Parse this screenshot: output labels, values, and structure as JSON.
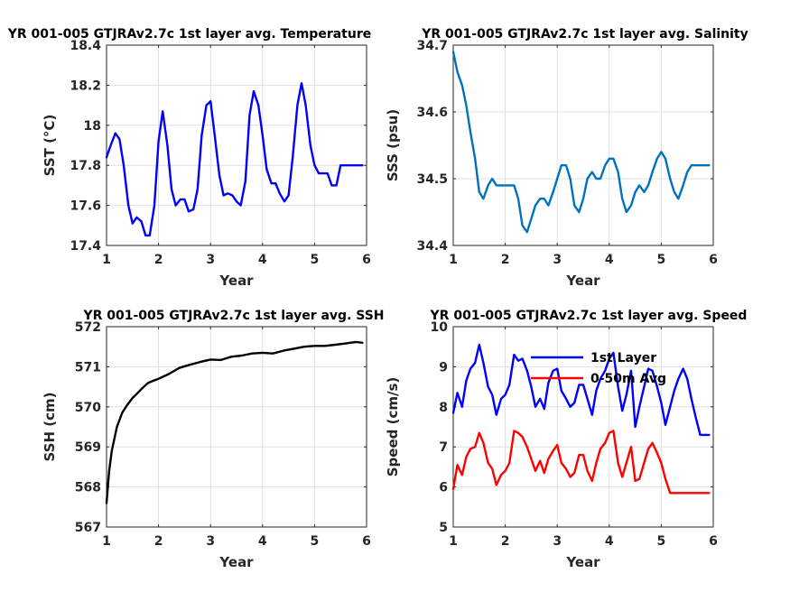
{
  "chart_data": [
    {
      "type": "line",
      "title": "YR 001-005 GTJRAv2.7c 1st layer avg. Temperature",
      "xlabel": "Year",
      "ylabel": "SST (°C)",
      "xlim": [
        1,
        6
      ],
      "ylim": [
        17.4,
        18.4
      ],
      "xticks": [
        "1",
        "2",
        "3",
        "4",
        "5",
        "6"
      ],
      "yticks": [
        "17.4",
        "17.6",
        "17.8",
        "18",
        "18.2",
        "18.4"
      ],
      "grid": true,
      "series": [
        {
          "color": "#0000ff",
          "x": [
            1.0,
            1.08,
            1.17,
            1.25,
            1.33,
            1.42,
            1.5,
            1.58,
            1.67,
            1.75,
            1.83,
            1.92,
            2.0,
            2.08,
            2.17,
            2.25,
            2.33,
            2.42,
            2.5,
            2.58,
            2.67,
            2.75,
            2.83,
            2.92,
            3.0,
            3.08,
            3.17,
            3.25,
            3.33,
            3.42,
            3.5,
            3.58,
            3.67,
            3.75,
            3.83,
            3.92,
            4.0,
            4.08,
            4.17,
            4.25,
            4.33,
            4.42,
            4.5,
            4.58,
            4.67,
            4.75,
            4.83,
            4.92,
            5.0,
            5.08,
            5.17,
            5.25,
            5.33,
            5.42,
            5.5,
            5.58,
            5.67,
            5.75,
            5.83,
            5.92
          ],
          "values": [
            17.84,
            17.9,
            17.96,
            17.93,
            17.8,
            17.6,
            17.51,
            17.54,
            17.52,
            17.45,
            17.45,
            17.6,
            17.92,
            18.07,
            17.9,
            17.68,
            17.6,
            17.63,
            17.63,
            17.57,
            17.58,
            17.68,
            17.95,
            18.1,
            18.12,
            17.95,
            17.75,
            17.65,
            17.66,
            17.65,
            17.62,
            17.6,
            17.72,
            18.05,
            18.17,
            18.1,
            17.95,
            17.78,
            17.71,
            17.71,
            17.66,
            17.62,
            17.65,
            17.84,
            18.1,
            18.21,
            18.1,
            17.9,
            17.8,
            17.76,
            17.76,
            17.76,
            17.7,
            17.7,
            17.8,
            17.8,
            17.8,
            17.8,
            17.8,
            17.8
          ]
        }
      ]
    },
    {
      "type": "line",
      "title": "YR 001-005 GTJRAv2.7c 1st layer avg. Salinity",
      "xlabel": "Year",
      "ylabel": "SSS (psu)",
      "xlim": [
        1,
        6
      ],
      "ylim": [
        34.4,
        34.7
      ],
      "xticks": [
        "1",
        "2",
        "3",
        "4",
        "5",
        "6"
      ],
      "yticks": [
        "34.4",
        "34.5",
        "34.6",
        "34.7"
      ],
      "grid": true,
      "series": [
        {
          "color": "#0072bd",
          "x": [
            1.0,
            1.08,
            1.17,
            1.25,
            1.33,
            1.42,
            1.5,
            1.58,
            1.67,
            1.75,
            1.83,
            1.92,
            2.0,
            2.08,
            2.17,
            2.25,
            2.33,
            2.42,
            2.5,
            2.58,
            2.67,
            2.75,
            2.83,
            2.92,
            3.0,
            3.08,
            3.17,
            3.25,
            3.33,
            3.42,
            3.5,
            3.58,
            3.67,
            3.75,
            3.83,
            3.92,
            4.0,
            4.08,
            4.17,
            4.25,
            4.33,
            4.42,
            4.5,
            4.58,
            4.67,
            4.75,
            4.83,
            4.92,
            5.0,
            5.08,
            5.17,
            5.25,
            5.33,
            5.42,
            5.5,
            5.58,
            5.67,
            5.75,
            5.83,
            5.92
          ],
          "values": [
            34.69,
            34.66,
            34.64,
            34.61,
            34.57,
            34.53,
            34.48,
            34.47,
            34.49,
            34.5,
            34.49,
            34.49,
            34.49,
            34.49,
            34.49,
            34.47,
            34.43,
            34.42,
            34.44,
            34.46,
            34.47,
            34.47,
            34.46,
            34.48,
            34.5,
            34.52,
            34.52,
            34.5,
            34.46,
            34.45,
            34.47,
            34.5,
            34.51,
            34.5,
            34.5,
            34.52,
            34.53,
            34.53,
            34.51,
            34.47,
            34.45,
            34.46,
            34.48,
            34.49,
            34.48,
            34.49,
            34.51,
            34.53,
            34.54,
            34.53,
            34.5,
            34.48,
            34.47,
            34.49,
            34.51,
            34.52,
            34.52,
            34.52,
            34.52,
            34.52
          ]
        }
      ]
    },
    {
      "type": "line",
      "title": "YR 001-005 GTJRAv2.7c 1st layer avg. SSH",
      "xlabel": "Year",
      "ylabel": "SSH (cm)",
      "xlim": [
        1,
        6
      ],
      "ylim": [
        567,
        572
      ],
      "xticks": [
        "1",
        "2",
        "3",
        "4",
        "5",
        "6"
      ],
      "yticks": [
        "567",
        "568",
        "569",
        "570",
        "571",
        "572"
      ],
      "grid": true,
      "series": [
        {
          "color": "#000000",
          "x": [
            1.0,
            1.05,
            1.1,
            1.2,
            1.3,
            1.4,
            1.5,
            1.6,
            1.7,
            1.8,
            1.9,
            2.0,
            2.2,
            2.4,
            2.6,
            2.8,
            3.0,
            3.2,
            3.4,
            3.6,
            3.8,
            4.0,
            4.2,
            4.4,
            4.6,
            4.8,
            5.0,
            5.2,
            5.4,
            5.6,
            5.8,
            5.92
          ],
          "values": [
            567.6,
            568.4,
            568.9,
            569.5,
            569.85,
            570.05,
            570.22,
            570.35,
            570.48,
            570.6,
            570.65,
            570.7,
            570.82,
            570.97,
            571.05,
            571.12,
            571.18,
            571.17,
            571.25,
            571.28,
            571.33,
            571.35,
            571.33,
            571.4,
            571.45,
            571.5,
            571.52,
            571.52,
            571.55,
            571.58,
            571.62,
            571.6
          ]
        }
      ]
    },
    {
      "type": "line",
      "title": "YR 001-005 GTJRAv2.7c 1st layer avg. Speed",
      "xlabel": "Year",
      "ylabel": "Speed (cm/s)",
      "xlim": [
        1,
        6
      ],
      "ylim": [
        5,
        10
      ],
      "xticks": [
        "1",
        "2",
        "3",
        "4",
        "5",
        "6"
      ],
      "yticks": [
        "5",
        "6",
        "7",
        "8",
        "9",
        "10"
      ],
      "grid": true,
      "legend_position": "top-right",
      "series": [
        {
          "name": "1st Layer",
          "color": "#0000ff",
          "x": [
            1.0,
            1.08,
            1.17,
            1.25,
            1.33,
            1.42,
            1.5,
            1.58,
            1.67,
            1.75,
            1.83,
            1.92,
            2.0,
            2.08,
            2.17,
            2.25,
            2.33,
            2.42,
            2.5,
            2.58,
            2.67,
            2.75,
            2.83,
            2.92,
            3.0,
            3.08,
            3.17,
            3.25,
            3.33,
            3.42,
            3.5,
            3.58,
            3.67,
            3.75,
            3.83,
            3.92,
            4.0,
            4.08,
            4.17,
            4.25,
            4.33,
            4.42,
            4.5,
            4.58,
            4.67,
            4.75,
            4.83,
            4.92,
            5.0,
            5.08,
            5.17,
            5.25,
            5.33,
            5.42,
            5.5,
            5.58,
            5.67,
            5.75,
            5.83,
            5.92
          ],
          "values": [
            7.85,
            8.35,
            8.0,
            8.65,
            8.95,
            9.1,
            9.55,
            9.1,
            8.5,
            8.3,
            7.8,
            8.2,
            8.3,
            8.55,
            9.3,
            9.15,
            9.2,
            8.9,
            8.5,
            8.0,
            8.2,
            7.95,
            8.6,
            8.9,
            8.95,
            8.4,
            8.2,
            8.0,
            8.1,
            8.55,
            8.55,
            8.2,
            7.8,
            8.4,
            8.7,
            8.9,
            9.2,
            9.35,
            8.5,
            7.9,
            8.3,
            8.9,
            7.5,
            8.0,
            8.5,
            8.95,
            8.9,
            8.5,
            8.1,
            7.55,
            8.0,
            8.4,
            8.7,
            8.95,
            8.7,
            8.2,
            7.7,
            7.3,
            7.3,
            7.3
          ]
        },
        {
          "name": "0-50m Avg",
          "color": "#ff0000",
          "x": [
            1.0,
            1.08,
            1.17,
            1.25,
            1.33,
            1.42,
            1.5,
            1.58,
            1.67,
            1.75,
            1.83,
            1.92,
            2.0,
            2.08,
            2.17,
            2.25,
            2.33,
            2.42,
            2.5,
            2.58,
            2.67,
            2.75,
            2.83,
            2.92,
            3.0,
            3.08,
            3.17,
            3.25,
            3.33,
            3.42,
            3.5,
            3.58,
            3.67,
            3.75,
            3.83,
            3.92,
            4.0,
            4.08,
            4.17,
            4.25,
            4.33,
            4.42,
            4.5,
            4.58,
            4.67,
            4.75,
            4.83,
            4.92,
            5.0,
            5.08,
            5.17,
            5.25,
            5.33,
            5.42,
            5.5,
            5.58,
            5.67,
            5.75,
            5.83,
            5.92
          ],
          "values": [
            5.95,
            6.55,
            6.3,
            6.75,
            6.95,
            7.0,
            7.35,
            7.1,
            6.6,
            6.45,
            6.05,
            6.3,
            6.4,
            6.6,
            7.4,
            7.35,
            7.25,
            7.0,
            6.7,
            6.4,
            6.65,
            6.35,
            6.7,
            6.9,
            7.05,
            6.6,
            6.45,
            6.25,
            6.35,
            6.8,
            6.8,
            6.4,
            6.15,
            6.6,
            6.95,
            7.1,
            7.35,
            7.4,
            6.6,
            6.25,
            6.6,
            7.0,
            6.15,
            6.2,
            6.6,
            6.95,
            7.1,
            6.85,
            6.6,
            6.2,
            5.85,
            5.85,
            5.85,
            5.85,
            5.85,
            5.85,
            5.85,
            5.85,
            5.85,
            5.85
          ]
        }
      ]
    }
  ]
}
